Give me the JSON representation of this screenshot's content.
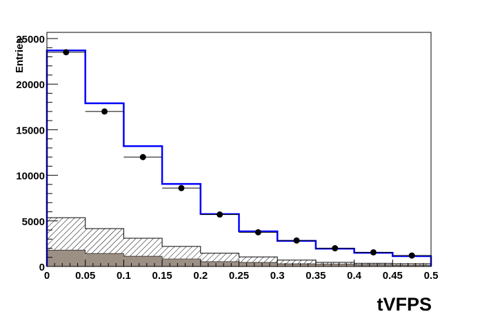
{
  "chart_data": {
    "type": "histogram",
    "xlabel": "tVFPS",
    "ylabel": "Entries",
    "xlim": [
      0,
      0.5
    ],
    "ylim": [
      0,
      25000
    ],
    "grid": false,
    "x_ticks": [
      "0",
      "0.05",
      "0.1",
      "0.15",
      "0.2",
      "0.25",
      "0.3",
      "0.35",
      "0.4",
      "0.45",
      "0.5"
    ],
    "y_ticks": [
      "0",
      "5000",
      "10000",
      "15000",
      "20000",
      "25000"
    ],
    "bin_edges": [
      0,
      0.05,
      0.1,
      0.15,
      0.2,
      0.25,
      0.3,
      0.35,
      0.4,
      0.45,
      0.5
    ],
    "series": [
      {
        "style": "blue-line",
        "color": "#0000ff",
        "values": [
          23700,
          17900,
          13200,
          9050,
          5750,
          3850,
          2800,
          1950,
          1500,
          1130
        ]
      },
      {
        "style": "hatched",
        "color": "#000000",
        "values": [
          5350,
          4150,
          3100,
          2200,
          1450,
          1050,
          700,
          450,
          350,
          300
        ]
      },
      {
        "style": "filled",
        "color": "#9c8f84",
        "values": [
          1800,
          1430,
          1130,
          830,
          530,
          450,
          300,
          250,
          200,
          150
        ]
      },
      {
        "style": "points",
        "color": "#000000",
        "values": [
          23500,
          17000,
          12000,
          8600,
          5700,
          3750,
          2850,
          2000,
          1550,
          1200
        ]
      }
    ]
  }
}
